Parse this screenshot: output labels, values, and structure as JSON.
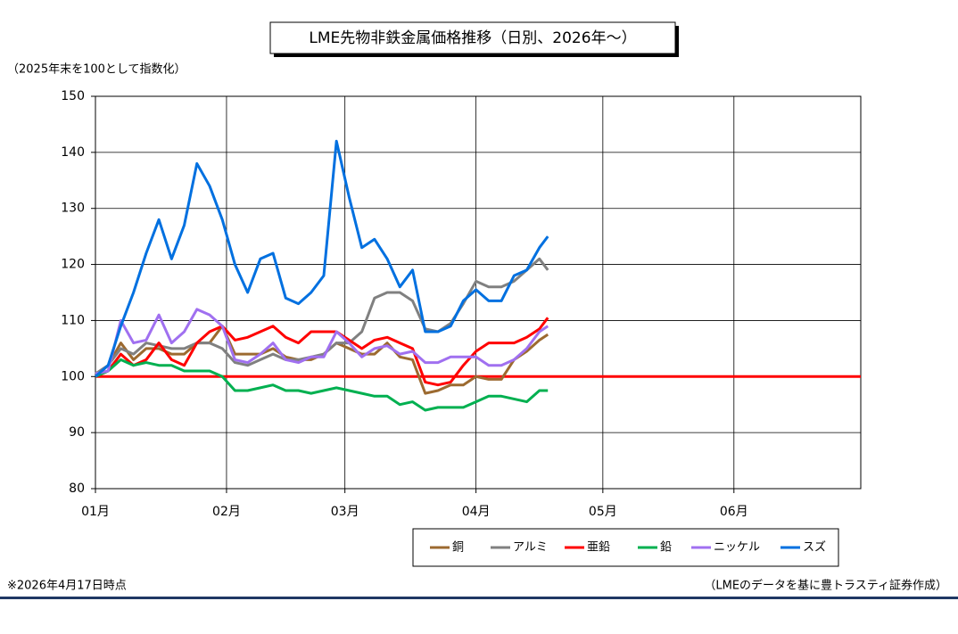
{
  "chart_data": {
    "type": "line",
    "title": "LME先物非鉄金属価格推移（日別、2026年～）",
    "y_label": "（2025年末を100として指数化）",
    "note": "※2026年4月17日時点",
    "source": "（LMEのデータを基に豊トラスティ証券作成）",
    "x": [
      0,
      3,
      6,
      9,
      12,
      15,
      18,
      21,
      24,
      27,
      30,
      33,
      36,
      39,
      42,
      45,
      48,
      51,
      54,
      57,
      60,
      63,
      66,
      69,
      72,
      75,
      78,
      81,
      84,
      87,
      90,
      93,
      96,
      99,
      102,
      105,
      107
    ],
    "xlim": [
      0,
      181
    ],
    "xticks": [
      {
        "value": 0,
        "label": "01月"
      },
      {
        "value": 31,
        "label": "02月"
      },
      {
        "value": 59,
        "label": "03月"
      },
      {
        "value": 90,
        "label": "04月"
      },
      {
        "value": 120,
        "label": "05月"
      },
      {
        "value": 151,
        "label": "06月"
      }
    ],
    "ylim": [
      80,
      150
    ],
    "yticks": [
      80,
      90,
      100,
      110,
      120,
      130,
      140,
      150
    ],
    "grid": true,
    "legend": "bottom",
    "reference_line": {
      "value": 100,
      "color": "#ff0000"
    },
    "series": [
      {
        "name": "銅",
        "color": "#9c6a30",
        "values": [
          100,
          102,
          106,
          103,
          105,
          105,
          104,
          104,
          106,
          106,
          109,
          104,
          104,
          104,
          105,
          103.5,
          103,
          103,
          104,
          106,
          105,
          104,
          104,
          106,
          103.5,
          103,
          97,
          97.5,
          98.5,
          98.5,
          100,
          99.5,
          99.5,
          103,
          104.5,
          106.5,
          107.5
        ]
      },
      {
        "name": "アルミ",
        "color": "#808080",
        "values": [
          100.5,
          102,
          105,
          104,
          106,
          105.5,
          105,
          105,
          106,
          106,
          105,
          102.5,
          102,
          103,
          104,
          103,
          103,
          103.5,
          104,
          106,
          106,
          108,
          114,
          115,
          115,
          113.5,
          108.5,
          108,
          109.5,
          113,
          117,
          116,
          116,
          117,
          119,
          121,
          119
        ]
      },
      {
        "name": "亜鉛",
        "color": "#ff0000",
        "values": [
          100,
          101,
          104,
          102,
          103,
          106,
          103,
          102,
          106,
          108,
          109,
          106.5,
          107,
          108,
          109,
          107,
          106,
          108,
          108,
          108,
          106.5,
          105,
          106.5,
          107,
          106,
          105,
          99,
          98.5,
          99,
          102,
          104.5,
          106,
          106,
          106,
          107,
          108.5,
          110.5
        ]
      },
      {
        "name": "鉛",
        "color": "#00b050",
        "values": [
          100,
          101,
          103,
          102,
          102.5,
          102,
          102,
          101,
          101,
          101,
          100,
          97.5,
          97.5,
          98,
          98.5,
          97.5,
          97.5,
          97,
          97.5,
          98,
          97.5,
          97,
          96.5,
          96.5,
          95,
          95.5,
          94,
          94.5,
          94.5,
          94.5,
          95.5,
          96.5,
          96.5,
          96,
          95.5,
          97.5,
          97.5
        ]
      },
      {
        "name": "ニッケル",
        "color": "#a070f0",
        "values": [
          100.5,
          101,
          110,
          106,
          106.5,
          111,
          106,
          108,
          112,
          111,
          109,
          103,
          102.5,
          104,
          106,
          103,
          102.5,
          103.5,
          103.5,
          108,
          106,
          103.5,
          105,
          105.5,
          104,
          104.5,
          102.5,
          102.5,
          103.5,
          103.5,
          103.5,
          102,
          102,
          103,
          105,
          108,
          109
        ]
      },
      {
        "name": "スズ",
        "color": "#0070e0",
        "values": [
          100,
          102,
          109,
          115,
          122,
          128,
          121,
          127,
          138,
          134,
          128,
          120,
          115,
          121,
          122,
          114,
          113,
          115,
          118,
          142,
          132,
          123,
          124.5,
          121,
          116,
          119,
          108,
          108,
          109,
          113.5,
          115.5,
          113.5,
          113.5,
          118,
          119,
          123,
          125
        ]
      }
    ]
  }
}
